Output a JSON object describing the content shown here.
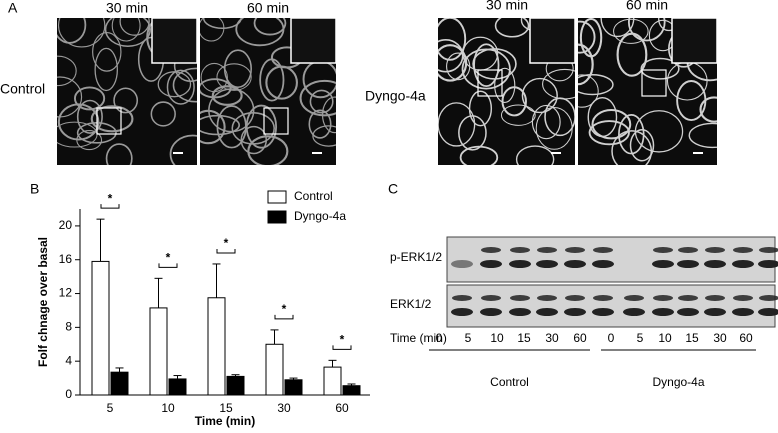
{
  "panel_a": {
    "label": "A",
    "left": {
      "condition": "Control",
      "times": [
        "30 min",
        "60 min"
      ]
    },
    "right": {
      "condition": "Dyngo-4a",
      "times": [
        "30 min",
        "60 min"
      ]
    }
  },
  "panel_b": {
    "label": "B"
  },
  "chart_data": {
    "type": "bar",
    "xlabel": "Time (min)",
    "ylabel": "Folf chnage over basal",
    "categories": [
      "5",
      "10",
      "15",
      "30",
      "60"
    ],
    "series": [
      {
        "name": "Control",
        "color": "#ffffff",
        "values": [
          15.8,
          10.3,
          11.5,
          6.0,
          3.3
        ],
        "errors": [
          5.0,
          3.5,
          4.0,
          1.7,
          0.8
        ]
      },
      {
        "name": "Dyngo-4a",
        "color": "#000000",
        "values": [
          2.7,
          1.9,
          2.2,
          1.8,
          1.1
        ],
        "errors": [
          0.5,
          0.4,
          0.2,
          0.2,
          0.2
        ]
      }
    ],
    "edgecolor": "#000000",
    "significance": [
      "*",
      "*",
      "*",
      "*",
      "*"
    ],
    "ylim": [
      0,
      22
    ],
    "yticks": [
      0,
      4,
      8,
      12,
      16,
      20
    ],
    "legend": "upper right"
  },
  "panel_c": {
    "label": "C",
    "rows": [
      "p-ERK1/2",
      "ERK1/2"
    ],
    "time_label": "Time (min)",
    "groups": [
      {
        "name": "Control",
        "lanes": [
          "0",
          "5",
          "10",
          "15",
          "30",
          "60"
        ]
      },
      {
        "name": "Dyngo-4a",
        "lanes": [
          "0",
          "5",
          "10",
          "15",
          "30",
          "60"
        ]
      }
    ]
  }
}
